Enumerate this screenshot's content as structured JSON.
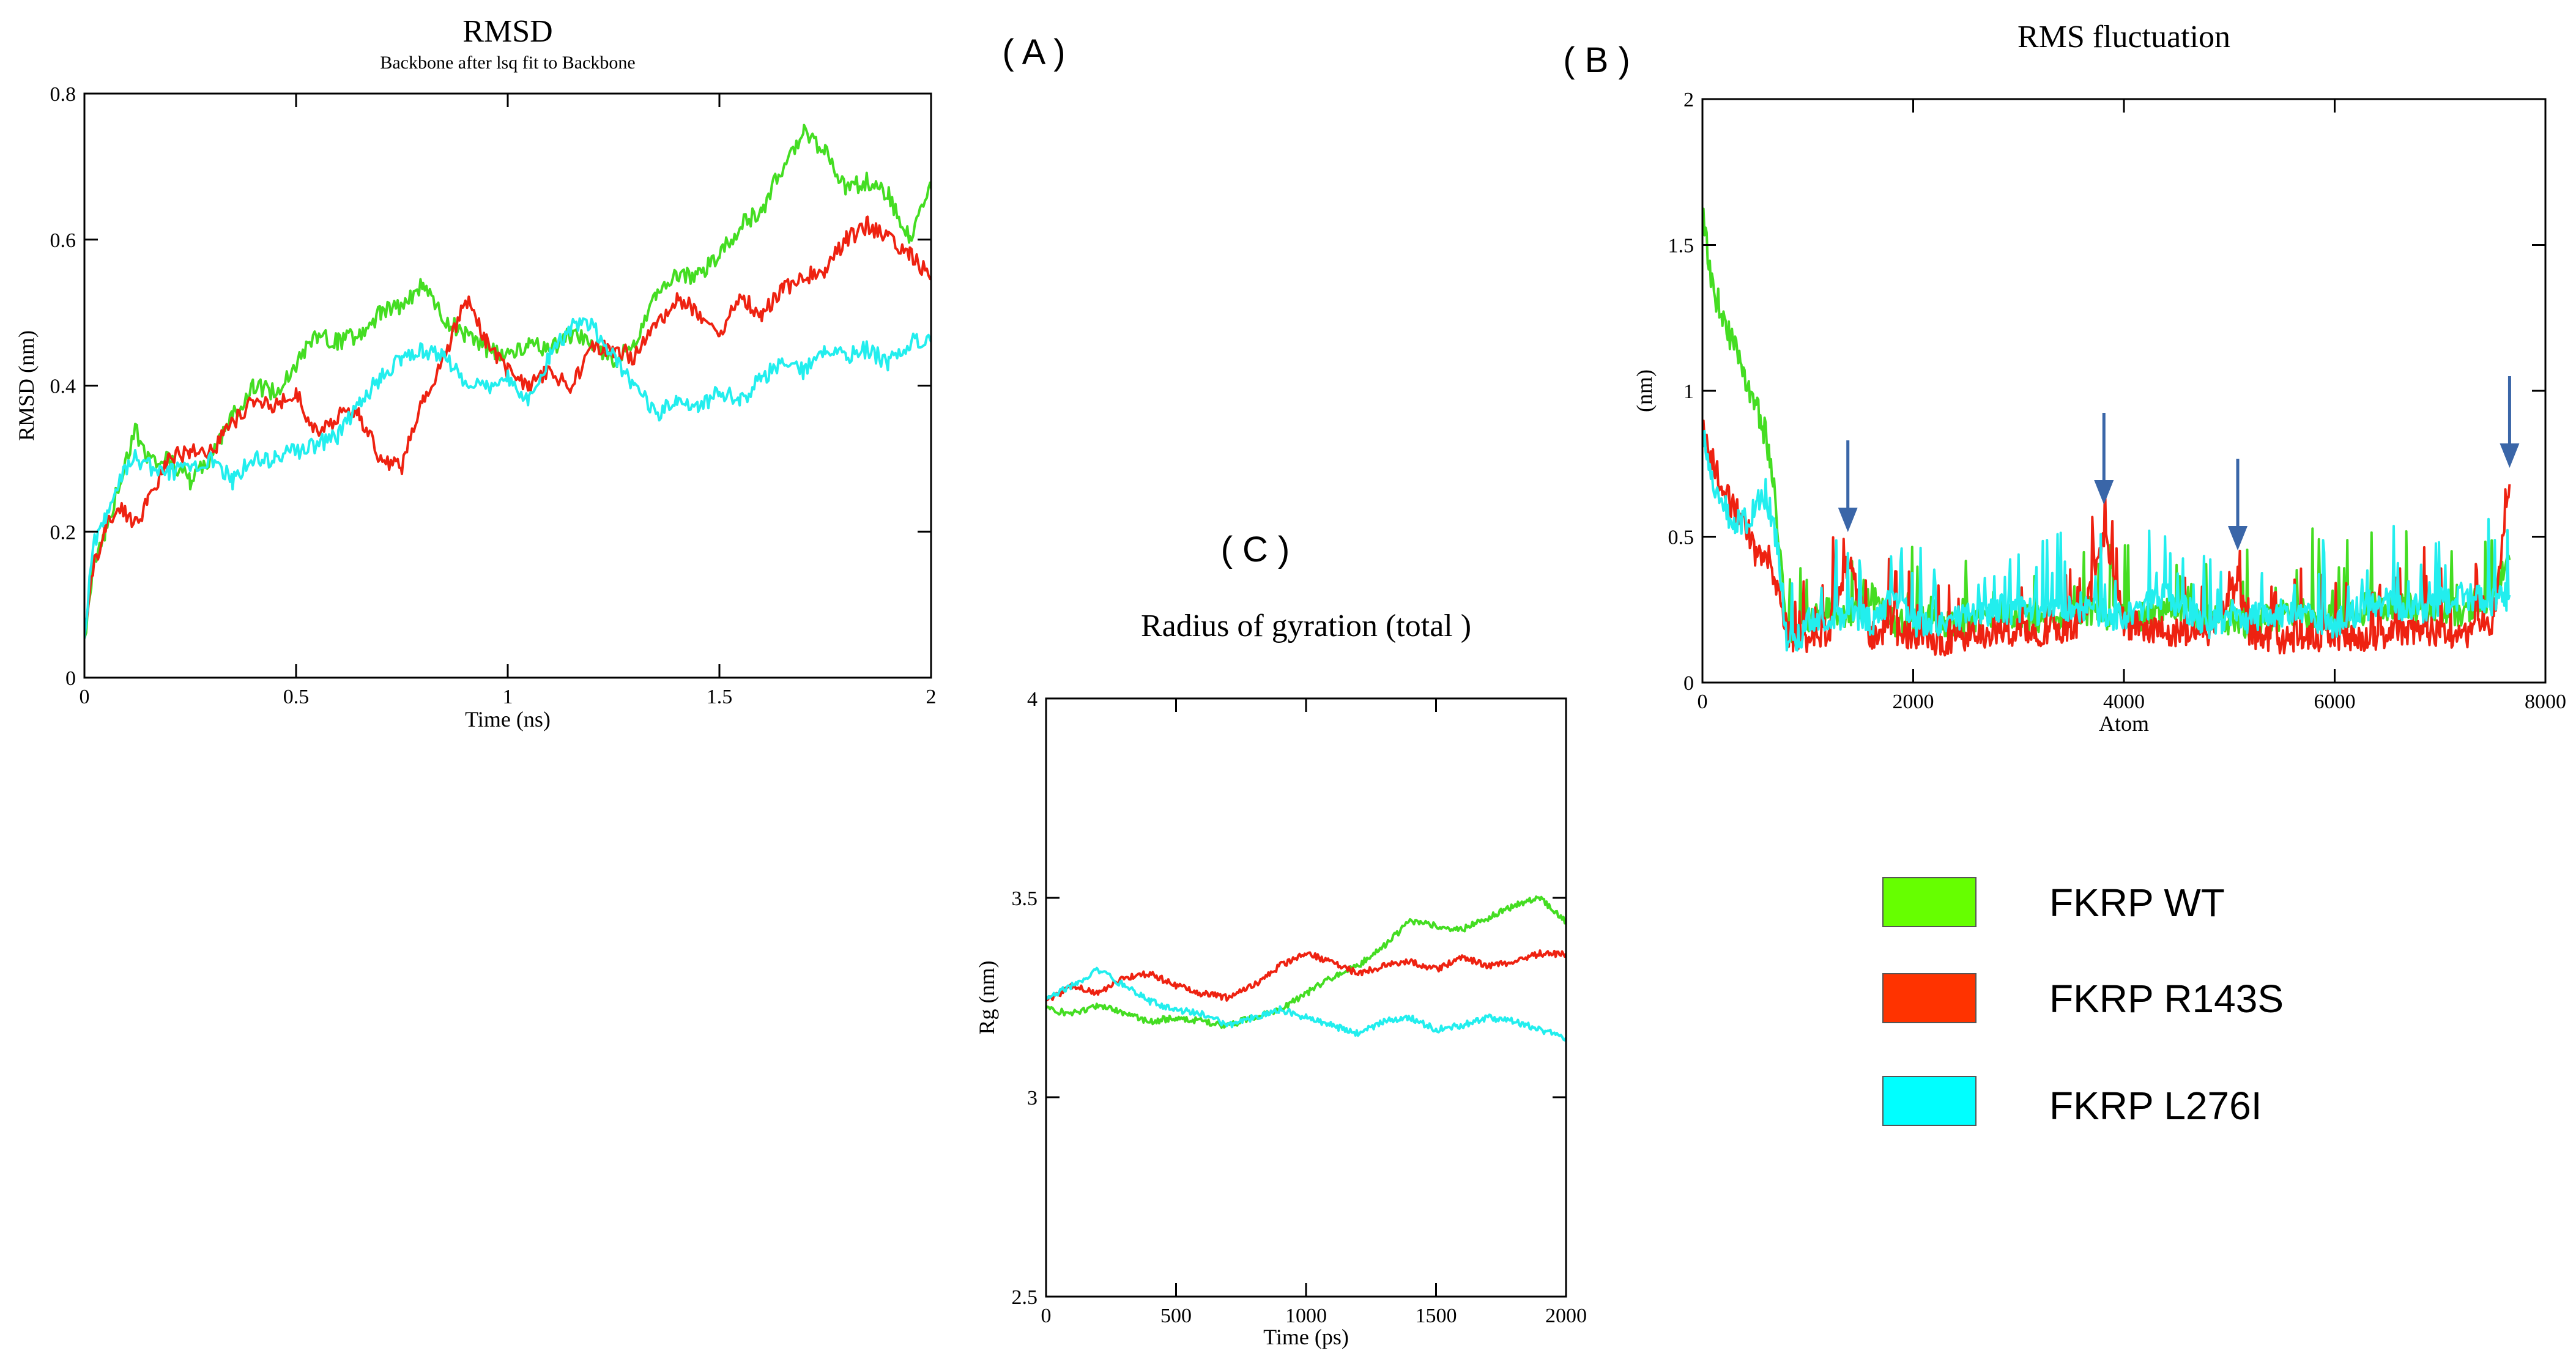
{
  "colors": {
    "wt": "#44dd22",
    "r143s": "#ee2211",
    "l276i": "#22eeee",
    "arrow": "#3a66a8"
  },
  "panel_labels": {
    "a": "( A )",
    "b": "( B )",
    "c": "( C )"
  },
  "legend": [
    {
      "label": "FKRP WT",
      "color": "#66ff00"
    },
    {
      "label": "FKRP R143S",
      "color": "#ff3300"
    },
    {
      "label": "FKRP L276I",
      "color": "#00ffff"
    }
  ],
  "chart_data": [
    {
      "id": "rmsd",
      "type": "line",
      "title": "RMSD",
      "subtitle": "Backbone after lsq fit to Backbone",
      "xlabel": "Time (ns)",
      "ylabel": "RMSD (nm)",
      "xlim": [
        0,
        2
      ],
      "ylim": [
        0,
        0.8
      ],
      "xticks": [
        0,
        0.5,
        1,
        1.5,
        2
      ],
      "xtick_labels": [
        "0",
        "0.5",
        "1",
        "1.5",
        "2"
      ],
      "yticks": [
        0,
        0.2,
        0.4,
        0.6,
        0.8
      ],
      "ytick_labels": [
        "0",
        "0.2",
        "0.4",
        "0.6",
        "0.8"
      ],
      "series": [
        {
          "name": "FKRP WT",
          "color": "#44dd22",
          "x": [
            0,
            0.02,
            0.05,
            0.08,
            0.12,
            0.15,
            0.2,
            0.25,
            0.3,
            0.35,
            0.4,
            0.45,
            0.5,
            0.55,
            0.6,
            0.65,
            0.7,
            0.75,
            0.8,
            0.85,
            0.9,
            0.95,
            1.0,
            1.05,
            1.1,
            1.15,
            1.2,
            1.25,
            1.3,
            1.35,
            1.4,
            1.45,
            1.5,
            1.55,
            1.6,
            1.65,
            1.7,
            1.75,
            1.8,
            1.85,
            1.9,
            1.95,
            2.0
          ],
          "y": [
            0.05,
            0.15,
            0.2,
            0.26,
            0.34,
            0.3,
            0.3,
            0.27,
            0.3,
            0.36,
            0.4,
            0.39,
            0.43,
            0.47,
            0.46,
            0.47,
            0.5,
            0.51,
            0.54,
            0.49,
            0.47,
            0.45,
            0.44,
            0.46,
            0.45,
            0.47,
            0.46,
            0.43,
            0.46,
            0.52,
            0.55,
            0.55,
            0.58,
            0.62,
            0.64,
            0.7,
            0.75,
            0.72,
            0.67,
            0.68,
            0.66,
            0.6,
            0.67
          ]
        },
        {
          "name": "FKRP R143S",
          "color": "#ee2211",
          "x": [
            0,
            0.02,
            0.05,
            0.08,
            0.12,
            0.15,
            0.2,
            0.25,
            0.3,
            0.35,
            0.4,
            0.45,
            0.5,
            0.55,
            0.6,
            0.65,
            0.7,
            0.75,
            0.8,
            0.85,
            0.9,
            0.95,
            1.0,
            1.05,
            1.1,
            1.15,
            1.2,
            1.25,
            1.3,
            1.35,
            1.4,
            1.45,
            1.5,
            1.55,
            1.6,
            1.65,
            1.7,
            1.75,
            1.8,
            1.85,
            1.9,
            1.95,
            2.0
          ],
          "y": [
            0.05,
            0.15,
            0.2,
            0.24,
            0.21,
            0.24,
            0.3,
            0.31,
            0.31,
            0.35,
            0.38,
            0.37,
            0.39,
            0.33,
            0.36,
            0.36,
            0.3,
            0.29,
            0.38,
            0.44,
            0.52,
            0.46,
            0.42,
            0.4,
            0.42,
            0.4,
            0.45,
            0.45,
            0.44,
            0.48,
            0.52,
            0.5,
            0.47,
            0.52,
            0.5,
            0.53,
            0.55,
            0.56,
            0.6,
            0.62,
            0.6,
            0.58,
            0.55
          ]
        },
        {
          "name": "FKRP L276I",
          "color": "#22eeee",
          "x": [
            0,
            0.02,
            0.05,
            0.08,
            0.12,
            0.15,
            0.2,
            0.25,
            0.3,
            0.35,
            0.4,
            0.45,
            0.5,
            0.55,
            0.6,
            0.65,
            0.7,
            0.75,
            0.8,
            0.85,
            0.9,
            0.95,
            1.0,
            1.05,
            1.1,
            1.15,
            1.2,
            1.25,
            1.3,
            1.35,
            1.4,
            1.45,
            1.5,
            1.55,
            1.6,
            1.65,
            1.7,
            1.75,
            1.8,
            1.85,
            1.9,
            1.95,
            2.0
          ],
          "y": [
            0.05,
            0.18,
            0.22,
            0.27,
            0.3,
            0.29,
            0.28,
            0.29,
            0.3,
            0.27,
            0.3,
            0.3,
            0.31,
            0.32,
            0.33,
            0.38,
            0.41,
            0.44,
            0.45,
            0.44,
            0.4,
            0.4,
            0.41,
            0.38,
            0.44,
            0.48,
            0.48,
            0.44,
            0.4,
            0.36,
            0.38,
            0.37,
            0.39,
            0.38,
            0.41,
            0.43,
            0.42,
            0.45,
            0.44,
            0.45,
            0.43,
            0.46,
            0.46
          ]
        }
      ]
    },
    {
      "id": "rmsf",
      "type": "line",
      "title": "RMS fluctuation",
      "xlabel": "Atom",
      "ylabel": "(nm)",
      "xlim": [
        0,
        8000
      ],
      "ylim": [
        0,
        2
      ],
      "xticks": [
        0,
        2000,
        4000,
        6000,
        8000
      ],
      "xtick_labels": [
        "0",
        "2000",
        "4000",
        "6000",
        "8000"
      ],
      "yticks": [
        0,
        0.5,
        1,
        1.5,
        2
      ],
      "ytick_labels": [
        "0",
        "0.5",
        "1",
        "1.5",
        "2"
      ],
      "arrows_at_atom": [
        1380,
        3810,
        5080,
        7660
      ],
      "series": [
        {
          "name": "FKRP WT",
          "color": "#44dd22",
          "x": [
            0,
            100,
            200,
            300,
            400,
            500,
            600,
            700,
            800,
            900,
            1000,
            1200,
            1400,
            1600,
            1800,
            2000,
            2400,
            2800,
            3200,
            3600,
            4000,
            4400,
            4800,
            5200,
            5600,
            6000,
            6400,
            6800,
            7200,
            7500,
            7660
          ],
          "y": [
            1.6,
            1.35,
            1.25,
            1.15,
            1.05,
            0.95,
            0.85,
            0.6,
            0.22,
            0.15,
            0.2,
            0.25,
            0.22,
            0.3,
            0.2,
            0.22,
            0.2,
            0.24,
            0.22,
            0.25,
            0.22,
            0.24,
            0.22,
            0.2,
            0.24,
            0.22,
            0.26,
            0.25,
            0.24,
            0.3,
            0.42
          ]
        },
        {
          "name": "FKRP R143S",
          "color": "#ee2211",
          "x": [
            0,
            100,
            200,
            300,
            400,
            500,
            600,
            700,
            800,
            900,
            1000,
            1200,
            1380,
            1600,
            1800,
            2000,
            2400,
            2800,
            3200,
            3600,
            3810,
            4000,
            4400,
            4800,
            5080,
            5200,
            5600,
            6000,
            6400,
            6800,
            7200,
            7500,
            7660
          ],
          "y": [
            0.9,
            0.75,
            0.65,
            0.6,
            0.55,
            0.45,
            0.45,
            0.35,
            0.18,
            0.12,
            0.15,
            0.18,
            0.42,
            0.16,
            0.18,
            0.15,
            0.14,
            0.18,
            0.16,
            0.2,
            0.5,
            0.2,
            0.18,
            0.15,
            0.35,
            0.16,
            0.14,
            0.16,
            0.15,
            0.18,
            0.16,
            0.2,
            0.68
          ]
        },
        {
          "name": "FKRP L276I",
          "color": "#22eeee",
          "x": [
            0,
            100,
            200,
            300,
            400,
            500,
            600,
            700,
            800,
            900,
            1000,
            1200,
            1400,
            1600,
            1800,
            2000,
            2400,
            2800,
            3200,
            3600,
            4000,
            4400,
            4800,
            5200,
            5600,
            6000,
            6400,
            6800,
            7200,
            7500,
            7660
          ],
          "y": [
            0.85,
            0.7,
            0.6,
            0.55,
            0.55,
            0.6,
            0.65,
            0.5,
            0.15,
            0.12,
            0.22,
            0.2,
            0.25,
            0.2,
            0.3,
            0.2,
            0.22,
            0.25,
            0.24,
            0.26,
            0.22,
            0.3,
            0.2,
            0.22,
            0.25,
            0.2,
            0.28,
            0.25,
            0.3,
            0.28,
            0.3
          ]
        }
      ]
    },
    {
      "id": "rg",
      "type": "line",
      "title": "Radius of gyration (total )",
      "xlabel": "Time (ps)",
      "ylabel": "Rg (nm)",
      "xlim": [
        0,
        2000
      ],
      "ylim": [
        2.5,
        4
      ],
      "xticks": [
        0,
        500,
        1000,
        1500,
        2000
      ],
      "xtick_labels": [
        "0",
        "500",
        "1000",
        "1500",
        "2000"
      ],
      "yticks": [
        2.5,
        3,
        3.5,
        4
      ],
      "ytick_labels": [
        "2.5",
        "3",
        "3.5",
        "4"
      ],
      "series": [
        {
          "name": "FKRP WT",
          "color": "#44dd22",
          "x": [
            0,
            100,
            200,
            300,
            400,
            500,
            600,
            700,
            800,
            900,
            1000,
            1100,
            1200,
            1300,
            1400,
            1500,
            1600,
            1700,
            1800,
            1900,
            2000
          ],
          "y": [
            3.22,
            3.21,
            3.23,
            3.21,
            3.19,
            3.2,
            3.19,
            3.18,
            3.2,
            3.22,
            3.26,
            3.3,
            3.33,
            3.38,
            3.44,
            3.43,
            3.42,
            3.45,
            3.48,
            3.5,
            3.44
          ]
        },
        {
          "name": "FKRP R143S",
          "color": "#ee2211",
          "x": [
            0,
            100,
            200,
            300,
            400,
            500,
            600,
            700,
            800,
            900,
            1000,
            1100,
            1200,
            1300,
            1400,
            1500,
            1600,
            1700,
            1800,
            1900,
            2000
          ],
          "y": [
            3.24,
            3.28,
            3.26,
            3.3,
            3.31,
            3.28,
            3.26,
            3.25,
            3.28,
            3.33,
            3.36,
            3.34,
            3.31,
            3.33,
            3.34,
            3.32,
            3.35,
            3.33,
            3.34,
            3.36,
            3.36
          ]
        },
        {
          "name": "FKRP L276I",
          "color": "#22eeee",
          "x": [
            0,
            100,
            200,
            300,
            400,
            500,
            600,
            700,
            800,
            900,
            1000,
            1100,
            1200,
            1300,
            1400,
            1500,
            1600,
            1700,
            1800,
            1900,
            2000
          ],
          "y": [
            3.25,
            3.28,
            3.32,
            3.28,
            3.24,
            3.22,
            3.21,
            3.18,
            3.2,
            3.22,
            3.2,
            3.18,
            3.16,
            3.19,
            3.2,
            3.17,
            3.18,
            3.2,
            3.19,
            3.17,
            3.15
          ]
        }
      ]
    }
  ]
}
